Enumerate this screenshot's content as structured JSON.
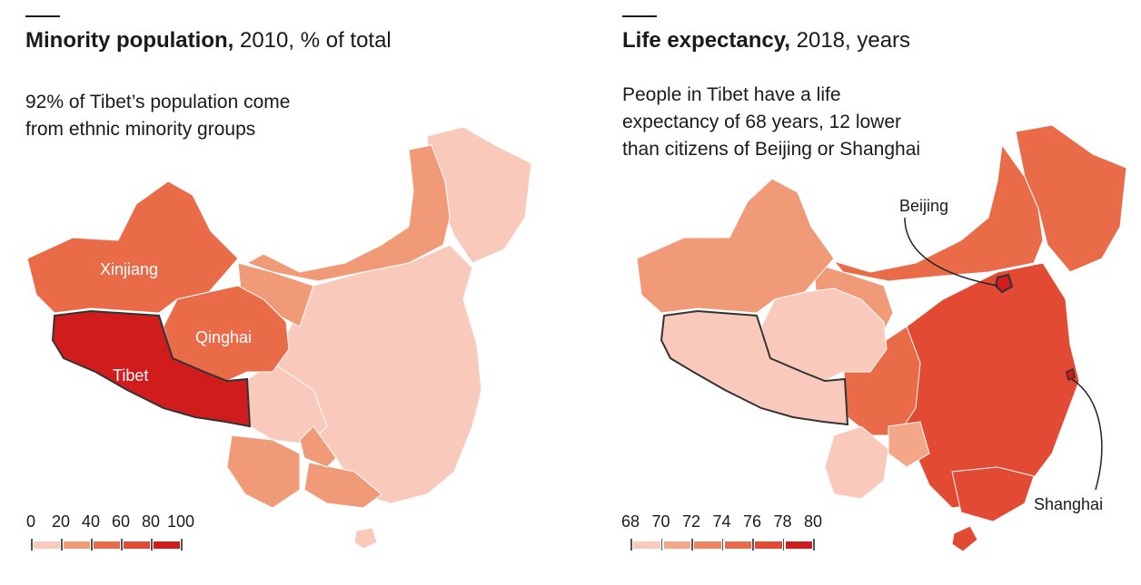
{
  "left": {
    "title_bold": "Minority population,",
    "title_rest": " 2010, % of total",
    "note_lines": [
      "92% of Tibet’s population come",
      "from ethnic minority groups"
    ],
    "labels": {
      "xinjiang": "Xinjiang",
      "qinghai": "Qinghai",
      "tibet": "Tibet"
    },
    "legend_ticks": [
      "0",
      "20",
      "40",
      "60",
      "80",
      "100"
    ],
    "legend_colors": [
      "#f9c9bb",
      "#f19a78",
      "#ea6b47",
      "#e24a33",
      "#d01c1c"
    ],
    "region_levels": {
      "tibet": 92,
      "xinjiang": 60,
      "qinghai": 47
    }
  },
  "right": {
    "title_bold": "Life expectancy,",
    "title_rest": " 2018, years",
    "note_lines": [
      "People in Tibet have a life",
      "expectancy of 68 years, 12 lower",
      "than citizens of Beijing or Shanghai"
    ],
    "labels": {
      "beijing": "Beijing",
      "shanghai": "Shanghai"
    },
    "legend_ticks": [
      "68",
      "70",
      "72",
      "74",
      "76",
      "78",
      "80"
    ],
    "legend_colors": [
      "#f9c9bb",
      "#f4a688",
      "#ef8560",
      "#ea6b47",
      "#e24a33",
      "#d01c1c"
    ],
    "region_levels": {
      "tibet": 68,
      "beijing": 80,
      "shanghai": 80
    }
  }
}
